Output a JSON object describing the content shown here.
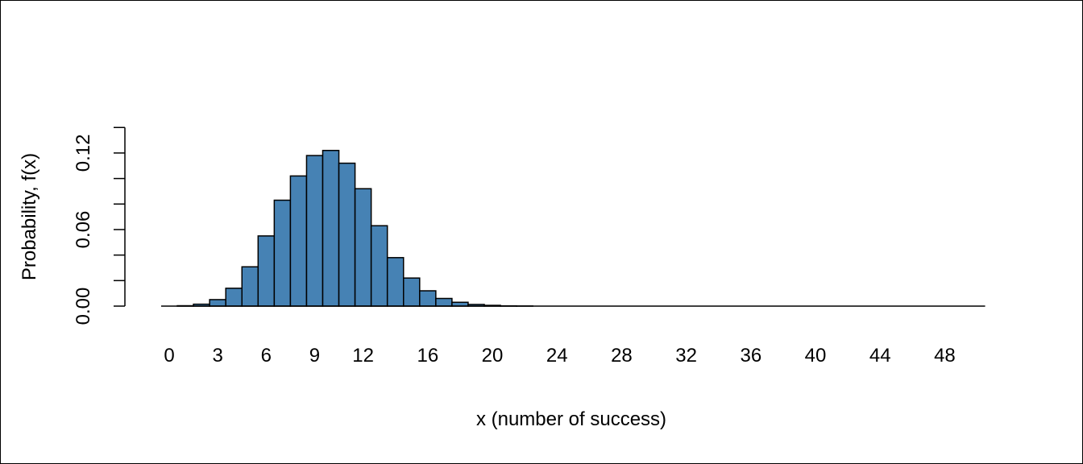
{
  "chart_data": {
    "type": "bar",
    "title": "",
    "xlabel": "x (number of success)",
    "ylabel": "Probability, f(x)",
    "categories": [
      0,
      1,
      2,
      3,
      4,
      5,
      6,
      7,
      8,
      9,
      10,
      11,
      12,
      13,
      14,
      15,
      16,
      17,
      18,
      19,
      20,
      21,
      22,
      23,
      24,
      25,
      26,
      27,
      28,
      29,
      30,
      31,
      32,
      33,
      34,
      35,
      36,
      37,
      38,
      39,
      40,
      41,
      42,
      43,
      44,
      45,
      46,
      47,
      48,
      49,
      50
    ],
    "values": [
      0.0,
      0.0003,
      0.0015,
      0.0051,
      0.014,
      0.0308,
      0.055,
      0.083,
      0.102,
      0.118,
      0.122,
      0.112,
      0.092,
      0.063,
      0.038,
      0.022,
      0.012,
      0.006,
      0.003,
      0.0013,
      0.0006,
      0.0002,
      0.0001,
      0,
      0,
      0,
      0,
      0,
      0,
      0,
      0,
      0,
      0,
      0,
      0,
      0,
      0,
      0,
      0,
      0,
      0,
      0,
      0,
      0,
      0,
      0,
      0,
      0,
      0,
      0,
      0
    ],
    "x_ticks": [
      "0",
      "3",
      "6",
      "9",
      "12",
      "16",
      "20",
      "24",
      "28",
      "32",
      "36",
      "40",
      "44",
      "48"
    ],
    "y_ticks": [
      "0.00",
      "0.06",
      "0.12"
    ],
    "ylim": [
      0,
      0.14
    ],
    "grid": false,
    "colors": {
      "bar_fill": "#4682B4",
      "bar_stroke": "#000000"
    }
  }
}
